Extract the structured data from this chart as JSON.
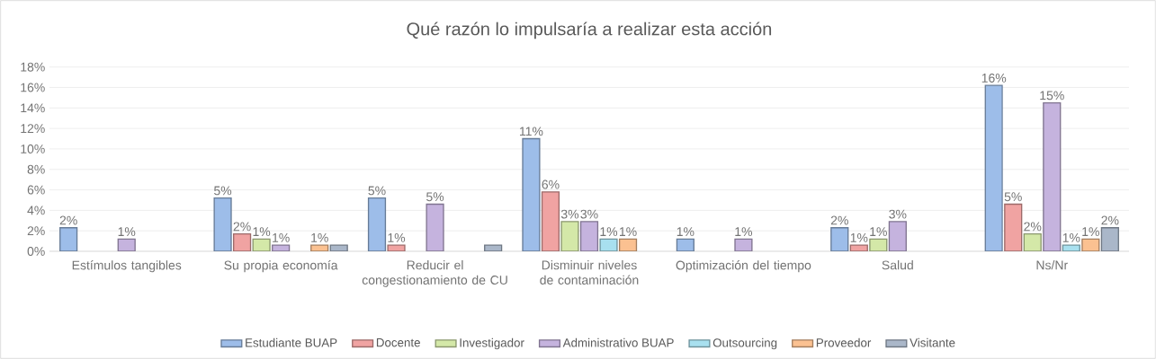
{
  "chart_data": {
    "type": "bar",
    "title": "Qué razón lo impulsaría a realizar esta acción",
    "categories": [
      "Estímulos tangibles",
      "Su propia economía",
      "Reducir el congestionamiento de CU",
      "Disminuir niveles de contaminación",
      "Optimización del tiempo",
      "Salud",
      "Ns/Nr"
    ],
    "series": [
      {
        "name": "Estudiante BUAP",
        "color": "#9dbde9",
        "values": [
          2.3,
          5.2,
          5.2,
          11.0,
          1.2,
          2.3,
          16.2
        ],
        "value_labels": [
          "2%",
          "5%",
          "5%",
          "11%",
          "1%",
          "2%",
          "16%"
        ]
      },
      {
        "name": "Docente",
        "color": "#f0a3a2",
        "values": [
          null,
          1.7,
          0.6,
          5.8,
          null,
          0.6,
          4.6
        ],
        "value_labels": [
          null,
          "2%",
          "1%",
          "6%",
          null,
          "1%",
          "5%"
        ]
      },
      {
        "name": "Investigador",
        "color": "#d4e8a8",
        "values": [
          null,
          1.2,
          null,
          2.9,
          null,
          1.2,
          1.7
        ],
        "value_labels": [
          null,
          "1%",
          null,
          "3%",
          null,
          "1%",
          "2%"
        ]
      },
      {
        "name": "Administrativo BUAP",
        "color": "#c5b3de",
        "values": [
          1.2,
          0.6,
          4.6,
          2.9,
          1.2,
          2.9,
          14.5
        ],
        "value_labels": [
          "1%",
          "1%",
          "5%",
          "3%",
          "1%",
          "3%",
          "15%"
        ]
      },
      {
        "name": "Outsourcing",
        "color": "#a8e0ef",
        "values": [
          null,
          null,
          null,
          1.2,
          null,
          null,
          0.6
        ],
        "value_labels": [
          null,
          null,
          null,
          "1%",
          null,
          null,
          "1%"
        ]
      },
      {
        "name": "Proveedor",
        "color": "#fbc191",
        "values": [
          null,
          0.6,
          null,
          1.2,
          null,
          null,
          1.2
        ],
        "value_labels": [
          null,
          "1%",
          null,
          "1%",
          null,
          null,
          "1%"
        ]
      },
      {
        "name": "Visitante",
        "color": "#aab7c9",
        "values": [
          null,
          0.6,
          0.6,
          null,
          null,
          null,
          2.3
        ],
        "value_labels": [
          null,
          null,
          null,
          null,
          null,
          null,
          "2%"
        ]
      }
    ],
    "ylim": [
      0,
      18
    ],
    "yticks": [
      {
        "value": 0,
        "label": "0%"
      },
      {
        "value": 2,
        "label": "2%"
      },
      {
        "value": 4,
        "label": "4%"
      },
      {
        "value": 6,
        "label": "6%"
      },
      {
        "value": 8,
        "label": "8%"
      },
      {
        "value": 10,
        "label": "10%"
      },
      {
        "value": 12,
        "label": "12%"
      },
      {
        "value": 14,
        "label": "14%"
      },
      {
        "value": 16,
        "label": "16%"
      },
      {
        "value": 18,
        "label": "18%"
      }
    ],
    "grid": "y",
    "legend": "bottom"
  }
}
